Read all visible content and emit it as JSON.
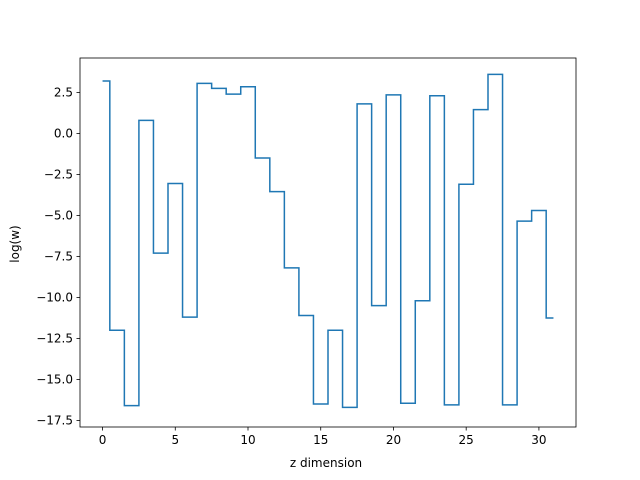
{
  "chart_data": {
    "type": "line",
    "drawstyle": "steps-mid",
    "title": "",
    "xlabel": "z dimension",
    "ylabel": "log(w)",
    "xlim": [
      -1.55,
      32.55
    ],
    "ylim": [
      -17.9,
      4.6
    ],
    "xticks": [
      0,
      5,
      10,
      15,
      20,
      25,
      30
    ],
    "xtick_labels": [
      "0",
      "5",
      "10",
      "15",
      "20",
      "25",
      "30"
    ],
    "yticks": [
      2.5,
      0.0,
      -2.5,
      -5.0,
      -7.5,
      -10.0,
      -12.5,
      -15.0,
      -17.5
    ],
    "ytick_labels": [
      "2.5",
      "0.0",
      "−2.5",
      "−5.0",
      "−7.5",
      "−10.0",
      "−12.5",
      "−15.0",
      "−17.5"
    ],
    "grid": false,
    "color": "#1f77b4",
    "series": [
      {
        "x": [
          0,
          1,
          2,
          3,
          4,
          5,
          6,
          7,
          8,
          9,
          10,
          11,
          12,
          13,
          14,
          15,
          16,
          17,
          18,
          19,
          20,
          21,
          22,
          23,
          24,
          25,
          26,
          27,
          28,
          29,
          30,
          31
        ],
        "values": [
          3.2,
          -12.0,
          -16.6,
          0.8,
          -7.3,
          -3.05,
          -11.2,
          3.05,
          2.75,
          2.4,
          2.85,
          -1.5,
          -3.55,
          -8.2,
          -11.1,
          -16.5,
          -12.0,
          -16.7,
          1.8,
          -10.5,
          2.35,
          -16.45,
          -10.2,
          2.3,
          -16.55,
          -3.1,
          1.45,
          3.6,
          -16.55,
          -5.35,
          -4.7,
          -11.25
        ]
      }
    ]
  }
}
